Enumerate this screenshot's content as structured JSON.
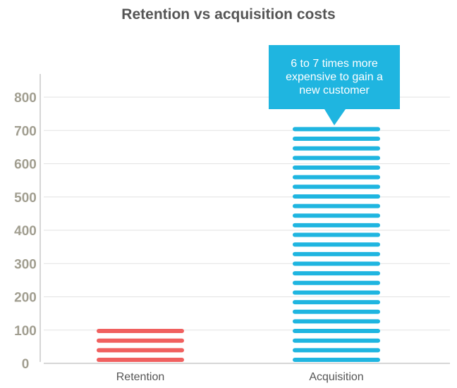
{
  "chart_data": {
    "type": "bar",
    "title": "Retention vs acquisition costs",
    "categories": [
      "Retention",
      "Acquisition"
    ],
    "values": [
      100,
      700
    ],
    "colors": [
      "#f0605f",
      "#1fb5e0"
    ],
    "ylim": [
      0,
      800
    ],
    "yticks": [
      0,
      100,
      200,
      300,
      400,
      500,
      600,
      700,
      800
    ],
    "grid": true,
    "bar_style": "striped",
    "annotation": {
      "text": "6 to 7 times more expensive to gain a new customer",
      "target": "Acquisition",
      "color": "#1fb5e0"
    }
  }
}
